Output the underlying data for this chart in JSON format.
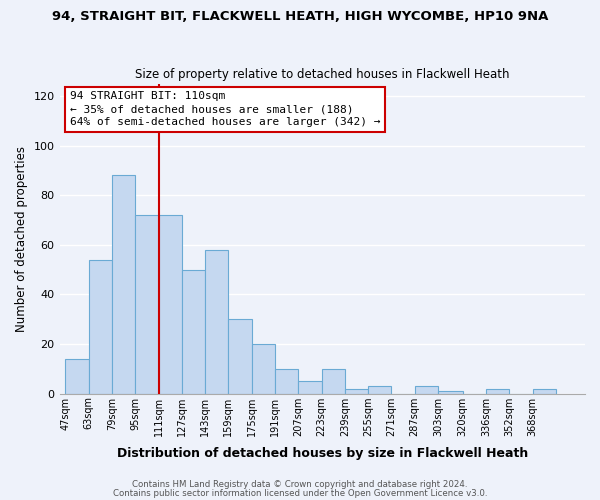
{
  "title1": "94, STRAIGHT BIT, FLACKWELL HEATH, HIGH WYCOMBE, HP10 9NA",
  "title2": "Size of property relative to detached houses in Flackwell Heath",
  "xlabel": "Distribution of detached houses by size in Flackwell Heath",
  "ylabel": "Number of detached properties",
  "bar_color": "#c5d8f0",
  "bar_edge_color": "#6aaad4",
  "vline_color": "#cc0000",
  "vline_x": 111,
  "categories": [
    "47sqm",
    "63sqm",
    "79sqm",
    "95sqm",
    "111sqm",
    "127sqm",
    "143sqm",
    "159sqm",
    "175sqm",
    "191sqm",
    "207sqm",
    "223sqm",
    "239sqm",
    "255sqm",
    "271sqm",
    "287sqm",
    "303sqm",
    "320sqm",
    "336sqm",
    "352sqm",
    "368sqm"
  ],
  "bin_edges": [
    47,
    63,
    79,
    95,
    111,
    127,
    143,
    159,
    175,
    191,
    207,
    223,
    239,
    255,
    271,
    287,
    303,
    320,
    336,
    352,
    368,
    384
  ],
  "values": [
    14,
    54,
    88,
    72,
    72,
    50,
    58,
    30,
    20,
    10,
    5,
    10,
    2,
    3,
    0,
    3,
    1,
    0,
    2,
    0,
    2
  ],
  "ylim": [
    0,
    125
  ],
  "yticks": [
    0,
    20,
    40,
    60,
    80,
    100,
    120
  ],
  "annotation_title": "94 STRAIGHT BIT: 110sqm",
  "annotation_line1": "← 35% of detached houses are smaller (188)",
  "annotation_line2": "64% of semi-detached houses are larger (342) →",
  "annotation_box_color": "#ffffff",
  "annotation_box_edge": "#cc0000",
  "footnote1": "Contains HM Land Registry data © Crown copyright and database right 2024.",
  "footnote2": "Contains public sector information licensed under the Open Government Licence v3.0.",
  "background_color": "#eef2fa",
  "grid_color": "#ffffff"
}
